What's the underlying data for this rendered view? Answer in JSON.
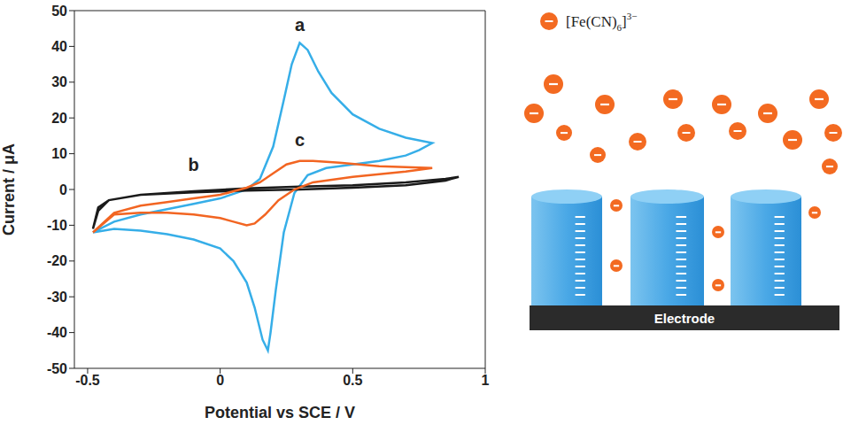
{
  "chart_data": {
    "type": "line",
    "x_label": "Potential vs SCE / V",
    "y_label": "Current / μA",
    "xlim": [
      -0.55,
      1
    ],
    "xticks": [
      -0.5,
      0,
      0.5,
      1
    ],
    "ylim": [
      -50,
      50
    ],
    "yticks": [
      -50,
      -40,
      -30,
      -20,
      -10,
      0,
      10,
      20,
      30,
      40,
      50
    ],
    "series": [
      {
        "name": "a",
        "color": "#36aee8",
        "label_x": 0.3,
        "label_y": 46,
        "x": [
          -0.48,
          -0.4,
          -0.3,
          -0.2,
          -0.1,
          0,
          0.1,
          0.15,
          0.2,
          0.24,
          0.27,
          0.3,
          0.33,
          0.37,
          0.42,
          0.5,
          0.6,
          0.7,
          0.8,
          0.75,
          0.7,
          0.6,
          0.5,
          0.4,
          0.33,
          0.28,
          0.24,
          0.21,
          0.19,
          0.18,
          0.16,
          0.13,
          0.1,
          0.05,
          0,
          -0.1,
          -0.2,
          -0.3,
          -0.4,
          -0.48
        ],
        "values": [
          -12,
          -9,
          -7,
          -5.5,
          -4,
          -2.5,
          0,
          3,
          12,
          25,
          35,
          41,
          39,
          33,
          27,
          21,
          17,
          14.5,
          13,
          11,
          9.5,
          8,
          7,
          6,
          4,
          -1,
          -12,
          -28,
          -40,
          -45,
          -42,
          -33,
          -26,
          -20,
          -16.5,
          -14,
          -12.5,
          -11.5,
          -11,
          -12
        ]
      },
      {
        "name": "b",
        "color": "#1a1a1a",
        "label_x": -0.1,
        "label_y": 7,
        "x": [
          -0.48,
          -0.46,
          -0.42,
          -0.3,
          -0.1,
          0.1,
          0.3,
          0.5,
          0.7,
          0.85,
          0.9,
          0.85,
          0.7,
          0.5,
          0.3,
          0.1,
          -0.1,
          -0.3,
          -0.42,
          -0.46,
          -0.48
        ],
        "values": [
          -11,
          -6,
          -3,
          -1.5,
          -0.5,
          0.3,
          0.8,
          1.2,
          2,
          3,
          3.5,
          2.5,
          1.2,
          0.5,
          0,
          -0.3,
          -0.8,
          -1.5,
          -3,
          -5,
          -11
        ]
      },
      {
        "name": "c",
        "color": "#f26522",
        "label_x": 0.3,
        "label_y": 14,
        "x": [
          -0.48,
          -0.4,
          -0.3,
          -0.2,
          -0.1,
          0,
          0.1,
          0.15,
          0.2,
          0.25,
          0.3,
          0.35,
          0.45,
          0.6,
          0.8,
          0.7,
          0.5,
          0.35,
          0.28,
          0.22,
          0.17,
          0.13,
          0.1,
          0.05,
          0,
          -0.1,
          -0.2,
          -0.3,
          -0.4,
          -0.48
        ],
        "values": [
          -12,
          -6.5,
          -4.5,
          -3.5,
          -2.5,
          -1.5,
          0.5,
          2,
          4.5,
          7,
          8,
          8,
          7.5,
          6.5,
          6,
          5,
          3.5,
          2,
          0,
          -3,
          -7,
          -9.5,
          -10,
          -9,
          -8,
          -7,
          -6.5,
          -6.5,
          -7,
          -12
        ]
      }
    ]
  },
  "diagram": {
    "ion_label": {
      "base": "[Fe(CN)",
      "sub": "6",
      "close": "]",
      "sup": "3−"
    },
    "electrode_label": "Electrode"
  }
}
